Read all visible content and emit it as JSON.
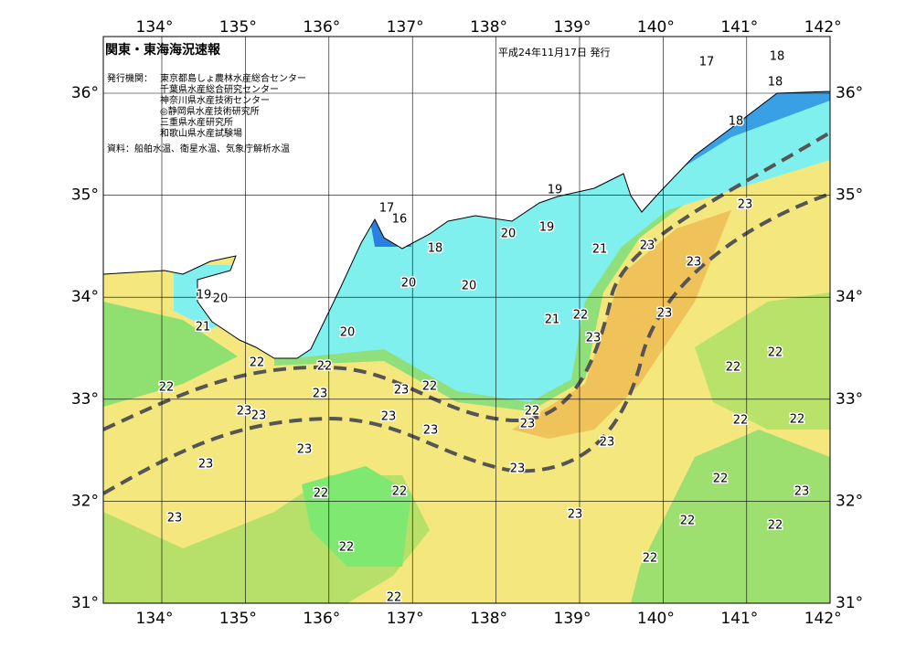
{
  "header": {
    "title": "関東・東海海況速報",
    "date": "平成24年11月17日 発行",
    "agencies_label": "発行機関：",
    "agencies": [
      "東京都島しょ農林水産総合センター",
      "千葉県水産総合研究センター",
      "神奈川県水産技術センター",
      "◎静岡県水産技術研究所",
      "三重県水産研究所",
      "和歌山県水産試験場"
    ],
    "source": "資料：船舶水温、衛星水温、気象庁解析水温"
  },
  "map": {
    "longitudes": [
      {
        "value": 134,
        "label": "134°"
      },
      {
        "value": 135,
        "label": "135°"
      },
      {
        "value": 136,
        "label": "136°"
      },
      {
        "value": 137,
        "label": "137°"
      },
      {
        "value": 138,
        "label": "138°"
      },
      {
        "value": 139,
        "label": "139°"
      },
      {
        "value": 140,
        "label": "140°"
      },
      {
        "value": 141,
        "label": "141°"
      },
      {
        "value": 142,
        "label": "142°"
      }
    ],
    "latitudes": [
      {
        "value": 36,
        "label": "36°"
      },
      {
        "value": 35,
        "label": "35°"
      },
      {
        "value": 34,
        "label": "34°"
      },
      {
        "value": 33,
        "label": "33°"
      },
      {
        "value": 32,
        "label": "32°"
      },
      {
        "value": 31,
        "label": "31°"
      }
    ],
    "contour_labels": [
      17,
      18,
      18,
      18,
      19,
      19,
      17,
      16,
      18,
      20,
      21,
      23,
      23,
      23,
      20,
      20,
      19,
      20,
      21,
      20,
      21,
      22,
      23,
      23,
      22,
      22,
      22,
      22,
      23,
      23,
      22,
      22,
      23,
      23,
      23,
      23,
      22,
      23,
      22,
      22,
      23,
      23,
      23,
      23,
      22,
      22,
      22,
      23,
      23,
      23,
      22,
      22,
      22,
      22,
      22
    ]
  }
}
